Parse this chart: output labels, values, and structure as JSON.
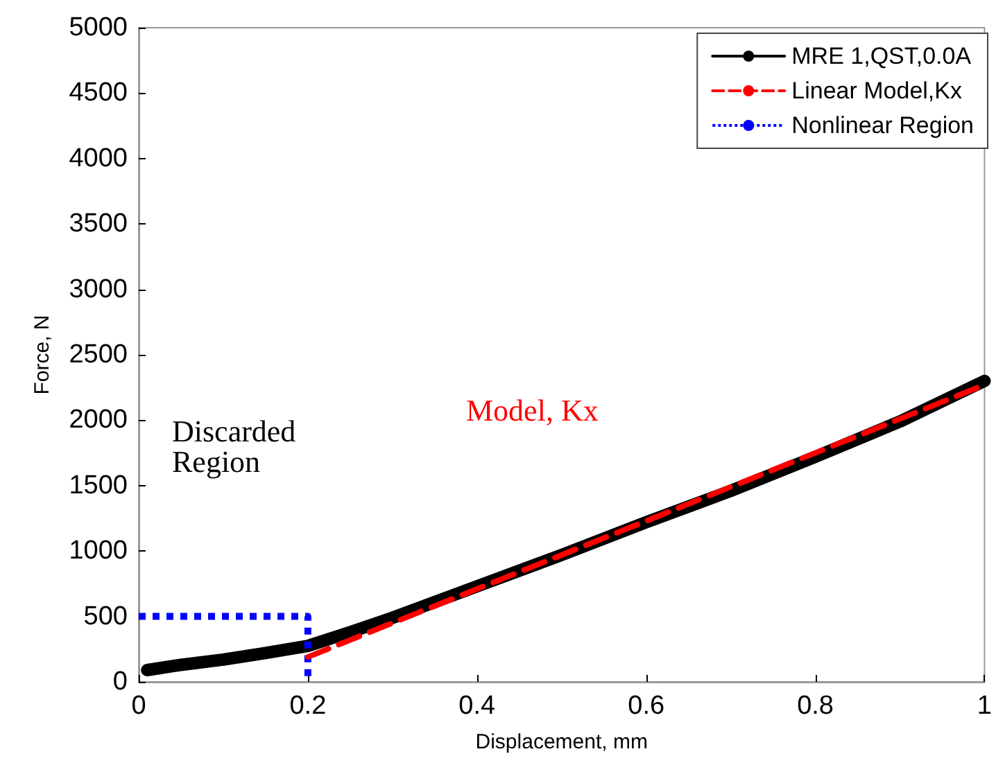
{
  "chart_data": {
    "type": "line",
    "xlabel": "Displacement, mm",
    "ylabel": "Force, N",
    "xlim": [
      0,
      1
    ],
    "xticks": [
      0,
      0.2,
      0.4,
      0.6,
      0.8,
      1
    ],
    "ylim": [
      0,
      5000
    ],
    "yticks": [
      0,
      500,
      1000,
      1500,
      2000,
      2500,
      3000,
      3500,
      4000,
      4500,
      5000
    ],
    "grid": false,
    "legend": "top right",
    "marker": "none",
    "annotations": [
      "Discarded",
      "Region",
      "Model, Kx"
    ],
    "series": [
      {
        "name": "MRE 1,QST,0.0A",
        "color": "#000000",
        "line_style": "solid",
        "x": [
          0.01,
          0.05,
          0.1,
          0.15,
          0.2,
          0.25,
          0.3,
          0.4,
          0.5,
          0.6,
          0.7,
          0.8,
          0.9,
          1
        ],
        "values": [
          90,
          130,
          170,
          220,
          275,
          380,
          490,
          730,
          970,
          1220,
          1460,
          1720,
          1990,
          2300
        ]
      },
      {
        "name": "Linear Model,Kx",
        "color": "#ff0000",
        "line_style": "dashed",
        "x": [
          0.2,
          1
        ],
        "values": [
          190,
          2270
        ]
      },
      {
        "name": "Nonlinear Region",
        "color": "#0000ff",
        "line_style": "dotted",
        "x": [
          0,
          0.2,
          0.2
        ],
        "values": [
          500,
          500,
          0
        ]
      }
    ]
  }
}
